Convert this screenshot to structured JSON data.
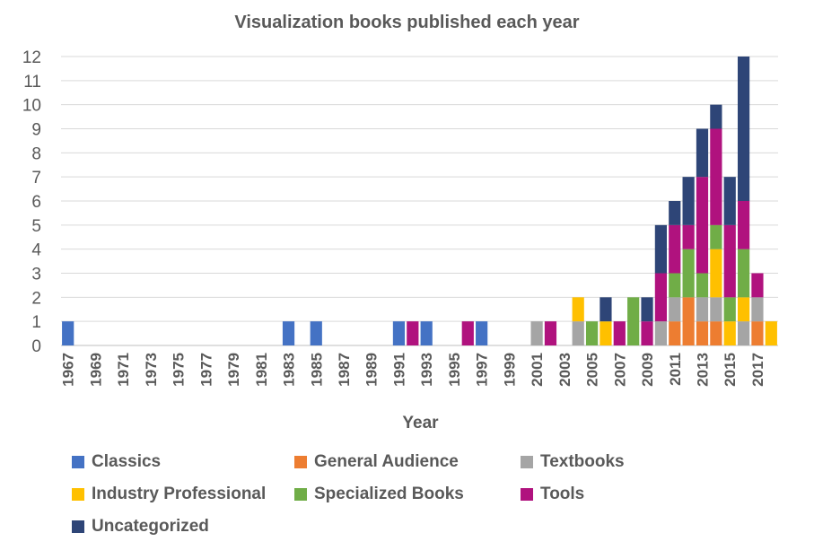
{
  "chart_data": {
    "type": "bar",
    "stacked": true,
    "title": "Visualization books published each year",
    "xlabel": "Year",
    "ylabel": "",
    "ylim": [
      0,
      12
    ],
    "yticks": [
      0,
      1,
      2,
      3,
      4,
      5,
      6,
      7,
      8,
      9,
      10,
      11,
      12
    ],
    "grid": "horizontal",
    "legend_position": "bottom",
    "x": [
      1967,
      1968,
      1969,
      1970,
      1971,
      1972,
      1973,
      1974,
      1975,
      1976,
      1977,
      1978,
      1979,
      1980,
      1981,
      1982,
      1983,
      1984,
      1985,
      1986,
      1987,
      1988,
      1989,
      1990,
      1991,
      1992,
      1993,
      1994,
      1995,
      1996,
      1997,
      1998,
      1999,
      2000,
      2001,
      2002,
      2003,
      2004,
      2005,
      2006,
      2007,
      2008,
      2009,
      2010,
      2011,
      2012,
      2013,
      2014,
      2015,
      2016,
      2017,
      2018
    ],
    "xtick_labels": [
      "1967",
      "1969",
      "1971",
      "1973",
      "1975",
      "1977",
      "1979",
      "1981",
      "1983",
      "1985",
      "1987",
      "1989",
      "1991",
      "1993",
      "1995",
      "1997",
      "1999",
      "2001",
      "2003",
      "2005",
      "2007",
      "2009",
      "2011",
      "2013",
      "2015",
      "2017"
    ],
    "series": [
      {
        "name": "Classics",
        "color": "#4472C4",
        "values": [
          1,
          0,
          0,
          0,
          0,
          0,
          0,
          0,
          0,
          0,
          0,
          0,
          0,
          0,
          0,
          0,
          1,
          0,
          1,
          0,
          0,
          0,
          0,
          0,
          1,
          0,
          1,
          0,
          0,
          0,
          1,
          0,
          0,
          0,
          0,
          0,
          0,
          0,
          0,
          0,
          0,
          0,
          0,
          0,
          0,
          0,
          0,
          0,
          0,
          0,
          0,
          0
        ]
      },
      {
        "name": "General Audience",
        "color": "#ED7D31",
        "values": [
          0,
          0,
          0,
          0,
          0,
          0,
          0,
          0,
          0,
          0,
          0,
          0,
          0,
          0,
          0,
          0,
          0,
          0,
          0,
          0,
          0,
          0,
          0,
          0,
          0,
          0,
          0,
          0,
          0,
          0,
          0,
          0,
          0,
          0,
          0,
          0,
          0,
          0,
          0,
          0,
          0,
          0,
          0,
          0,
          1,
          2,
          1,
          1,
          0,
          0,
          1,
          0
        ]
      },
      {
        "name": "Textbooks",
        "color": "#A5A5A5",
        "values": [
          0,
          0,
          0,
          0,
          0,
          0,
          0,
          0,
          0,
          0,
          0,
          0,
          0,
          0,
          0,
          0,
          0,
          0,
          0,
          0,
          0,
          0,
          0,
          0,
          0,
          0,
          0,
          0,
          0,
          0,
          0,
          0,
          0,
          0,
          1,
          0,
          0,
          1,
          0,
          0,
          0,
          0,
          0,
          1,
          1,
          0,
          1,
          1,
          0,
          1,
          1,
          0
        ]
      },
      {
        "name": "Industry Professional",
        "color": "#FFC000",
        "values": [
          0,
          0,
          0,
          0,
          0,
          0,
          0,
          0,
          0,
          0,
          0,
          0,
          0,
          0,
          0,
          0,
          0,
          0,
          0,
          0,
          0,
          0,
          0,
          0,
          0,
          0,
          0,
          0,
          0,
          0,
          0,
          0,
          0,
          0,
          0,
          0,
          0,
          1,
          0,
          1,
          0,
          0,
          0,
          0,
          0,
          0,
          0,
          2,
          1,
          1,
          0,
          1
        ]
      },
      {
        "name": "Specialized Books",
        "color": "#70AD47",
        "values": [
          0,
          0,
          0,
          0,
          0,
          0,
          0,
          0,
          0,
          0,
          0,
          0,
          0,
          0,
          0,
          0,
          0,
          0,
          0,
          0,
          0,
          0,
          0,
          0,
          0,
          0,
          0,
          0,
          0,
          0,
          0,
          0,
          0,
          0,
          0,
          0,
          0,
          0,
          1,
          0,
          0,
          2,
          0,
          0,
          1,
          2,
          1,
          1,
          1,
          2,
          0,
          0
        ]
      },
      {
        "name": "Tools",
        "color": "#B0127E",
        "values": [
          0,
          0,
          0,
          0,
          0,
          0,
          0,
          0,
          0,
          0,
          0,
          0,
          0,
          0,
          0,
          0,
          0,
          0,
          0,
          0,
          0,
          0,
          0,
          0,
          0,
          1,
          0,
          0,
          0,
          1,
          0,
          0,
          0,
          0,
          0,
          1,
          0,
          0,
          0,
          0,
          1,
          0,
          1,
          2,
          2,
          1,
          4,
          4,
          3,
          2,
          1,
          0
        ]
      },
      {
        "name": "Uncategorized",
        "color": "#2E4577",
        "values": [
          0,
          0,
          0,
          0,
          0,
          0,
          0,
          0,
          0,
          0,
          0,
          0,
          0,
          0,
          0,
          0,
          0,
          0,
          0,
          0,
          0,
          0,
          0,
          0,
          0,
          0,
          0,
          0,
          0,
          0,
          0,
          0,
          0,
          0,
          0,
          0,
          0,
          0,
          0,
          1,
          0,
          0,
          1,
          2,
          1,
          2,
          2,
          1,
          2,
          6,
          0,
          0
        ]
      }
    ]
  }
}
